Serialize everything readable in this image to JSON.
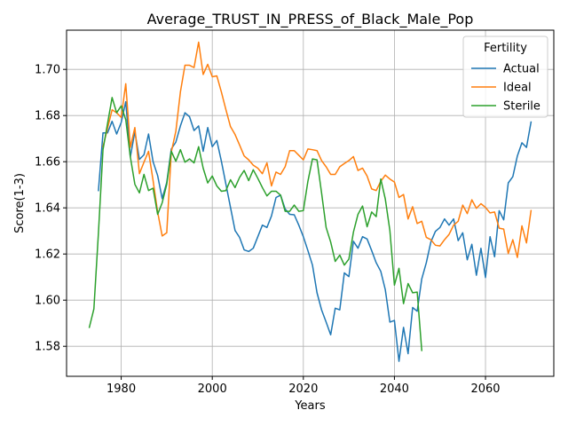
{
  "chart_data": {
    "type": "line",
    "title": "Average_TRUST_IN_PRESS_of_Black_Male_Pop",
    "xlabel": "Years",
    "ylabel": "Score(1-3)",
    "xlim": [
      1968,
      2075
    ],
    "ylim": [
      1.567,
      1.717
    ],
    "x_ticks": [
      1980,
      2000,
      2020,
      2040,
      2060
    ],
    "x_tick_labels": [
      "1980",
      "2000",
      "2020",
      "2040",
      "2060"
    ],
    "y_ticks": [
      1.58,
      1.6,
      1.62,
      1.64,
      1.66,
      1.68,
      1.7
    ],
    "y_tick_labels": [
      "1.58",
      "1.60",
      "1.62",
      "1.64",
      "1.66",
      "1.68",
      "1.70"
    ],
    "grid": true,
    "legend_title": "Fertility",
    "legend_position": "top-right",
    "series": [
      {
        "name": "Actual",
        "color": "#1f77b4",
        "x": [
          1975,
          1976,
          1977,
          1978,
          1979,
          1980,
          1981,
          1982,
          1983,
          1984,
          1985,
          1986,
          1987,
          1988,
          1989,
          1990,
          1991,
          1992,
          1993,
          1994,
          1995,
          1996,
          1997,
          1998,
          1999,
          2000,
          2001,
          2002,
          2003,
          2004,
          2005,
          2006,
          2007,
          2008,
          2009,
          2010,
          2011,
          2012,
          2013,
          2014,
          2015,
          2016,
          2017,
          2018,
          2019,
          2020,
          2021,
          2022,
          2023,
          2024,
          2025,
          2026,
          2027,
          2028,
          2029,
          2030,
          2031,
          2032,
          2033,
          2034,
          2035,
          2036,
          2037,
          2038,
          2039,
          2040,
          2041,
          2042,
          2043,
          2044,
          2045,
          2046,
          2047,
          2048,
          2049,
          2050,
          2051,
          2052,
          2053,
          2054,
          2055,
          2056,
          2057,
          2058,
          2059,
          2060,
          2061,
          2062,
          2063,
          2064,
          2065,
          2066,
          2067,
          2068,
          2069,
          2070
        ],
        "values": [
          1.6475,
          1.6725,
          1.6725,
          1.6775,
          1.672,
          1.677,
          1.686,
          1.662,
          1.673,
          1.661,
          1.663,
          1.672,
          1.66,
          1.654,
          1.644,
          1.651,
          1.6655,
          1.6685,
          1.6755,
          1.6812,
          1.6795,
          1.6735,
          1.6755,
          1.6645,
          1.6748,
          1.6665,
          1.6692,
          1.6602,
          1.6502,
          1.6402,
          1.6302,
          1.6272,
          1.6218,
          1.6211,
          1.6225,
          1.6275,
          1.6325,
          1.6315,
          1.6365,
          1.6445,
          1.6455,
          1.6395,
          1.6372,
          1.637,
          1.6325,
          1.6275,
          1.6215,
          1.6152,
          1.6032,
          1.5958,
          1.5905,
          1.585,
          1.5965,
          1.5958,
          1.6118,
          1.6102,
          1.6255,
          1.6225,
          1.6275,
          1.6265,
          1.6215,
          1.6162,
          1.6125,
          1.6045,
          1.5905,
          1.5912,
          1.5735,
          1.5882,
          1.5768,
          1.5968,
          1.5952,
          1.6092,
          1.6162,
          1.6252,
          1.6298,
          1.6315,
          1.6352,
          1.6325,
          1.6352,
          1.6258,
          1.6292,
          1.6175,
          1.6242,
          1.6108,
          1.6225,
          1.6098,
          1.6275,
          1.6188,
          1.6388,
          1.6348,
          1.6508,
          1.6535,
          1.6625,
          1.6682,
          1.6662,
          1.6772
        ]
      },
      {
        "name": "Ideal",
        "color": "#ff7f0e",
        "x": [
          1976,
          1977,
          1978,
          1979,
          1980,
          1981,
          1982,
          1983,
          1984,
          1985,
          1986,
          1987,
          1988,
          1989,
          1990,
          1991,
          1992,
          1993,
          1994,
          1995,
          1996,
          1997,
          1998,
          1999,
          2000,
          2001,
          2002,
          2003,
          2004,
          2005,
          2006,
          2007,
          2008,
          2009,
          2010,
          2011,
          2012,
          2013,
          2014,
          2015,
          2016,
          2017,
          2018,
          2019,
          2020,
          2021,
          2022,
          2023,
          2024,
          2025,
          2026,
          2027,
          2028,
          2029,
          2030,
          2031,
          2032,
          2033,
          2034,
          2035,
          2036,
          2037,
          2038,
          2039,
          2040,
          2041,
          2042,
          2043,
          2044,
          2045,
          2046,
          2047,
          2048,
          2049,
          2050,
          2051,
          2052,
          2053,
          2054,
          2055,
          2056,
          2057,
          2058,
          2059,
          2060,
          2061,
          2062,
          2063,
          2064,
          2065,
          2066,
          2067,
          2068,
          2069,
          2070
        ],
        "values": [
          1.6665,
          1.6745,
          1.6825,
          1.6812,
          1.6792,
          1.6938,
          1.6662,
          1.6748,
          1.6548,
          1.6598,
          1.6645,
          1.6518,
          1.6382,
          1.6278,
          1.6292,
          1.6642,
          1.6732,
          1.6902,
          1.7018,
          1.7018,
          1.7008,
          1.7118,
          1.6978,
          1.7022,
          1.6968,
          1.6972,
          1.6902,
          1.6825,
          1.6752,
          1.6718,
          1.6672,
          1.6625,
          1.6608,
          1.6585,
          1.6572,
          1.6548,
          1.6595,
          1.6495,
          1.6555,
          1.6545,
          1.6578,
          1.6648,
          1.6648,
          1.6628,
          1.6608,
          1.6655,
          1.6652,
          1.6648,
          1.6605,
          1.6578,
          1.6545,
          1.6545,
          1.6578,
          1.6592,
          1.6605,
          1.6622,
          1.6562,
          1.6572,
          1.6538,
          1.6482,
          1.6475,
          1.6515,
          1.6542,
          1.6525,
          1.6512,
          1.6445,
          1.6458,
          1.6352,
          1.6405,
          1.6332,
          1.6342,
          1.6272,
          1.6262,
          1.6238,
          1.6235,
          1.6262,
          1.6285,
          1.6325,
          1.6342,
          1.6412,
          1.6375,
          1.6435,
          1.6398,
          1.6418,
          1.6402,
          1.6378,
          1.6382,
          1.6312,
          1.6308,
          1.6202,
          1.6262,
          1.6185,
          1.6322,
          1.6248,
          1.6388
        ]
      },
      {
        "name": "Sterile",
        "color": "#2ca02c",
        "x": [
          1973,
          1974,
          1975,
          1976,
          1977,
          1978,
          1979,
          1980,
          1981,
          1982,
          1983,
          1984,
          1985,
          1986,
          1987,
          1988,
          1989,
          1990,
          1991,
          1992,
          1993,
          1994,
          1995,
          1996,
          1997,
          1998,
          1999,
          2000,
          2001,
          2002,
          2003,
          2004,
          2005,
          2006,
          2007,
          2008,
          2009,
          2010,
          2011,
          2012,
          2013,
          2014,
          2015,
          2016,
          2017,
          2018,
          2019,
          2020,
          2021,
          2022,
          2023,
          2024,
          2025,
          2026,
          2027,
          2028,
          2029,
          2030,
          2031,
          2032,
          2033,
          2034,
          2035,
          2036,
          2037,
          2038,
          2039,
          2040,
          2041,
          2042,
          2043,
          2044,
          2045,
          2046
        ],
        "values": [
          1.5882,
          1.5962,
          1.6292,
          1.6652,
          1.6765,
          1.6878,
          1.6812,
          1.6842,
          1.6782,
          1.6622,
          1.6502,
          1.6465,
          1.6545,
          1.6475,
          1.6485,
          1.6372,
          1.6422,
          1.6502,
          1.6645,
          1.6602,
          1.6652,
          1.6598,
          1.6612,
          1.6595,
          1.6665,
          1.6572,
          1.6508,
          1.6538,
          1.6495,
          1.6472,
          1.6475,
          1.6522,
          1.6488,
          1.6532,
          1.6562,
          1.6518,
          1.6565,
          1.6528,
          1.6488,
          1.6452,
          1.6472,
          1.6472,
          1.6455,
          1.6385,
          1.6385,
          1.6412,
          1.6385,
          1.6388,
          1.6515,
          1.6612,
          1.6608,
          1.6465,
          1.6315,
          1.6252,
          1.6168,
          1.6195,
          1.6152,
          1.6178,
          1.6295,
          1.6372,
          1.6408,
          1.6318,
          1.6382,
          1.6362,
          1.6525,
          1.6438,
          1.6302,
          1.6065,
          1.6138,
          1.5985,
          1.6072,
          1.6032,
          1.6035,
          1.5782
        ]
      }
    ]
  }
}
